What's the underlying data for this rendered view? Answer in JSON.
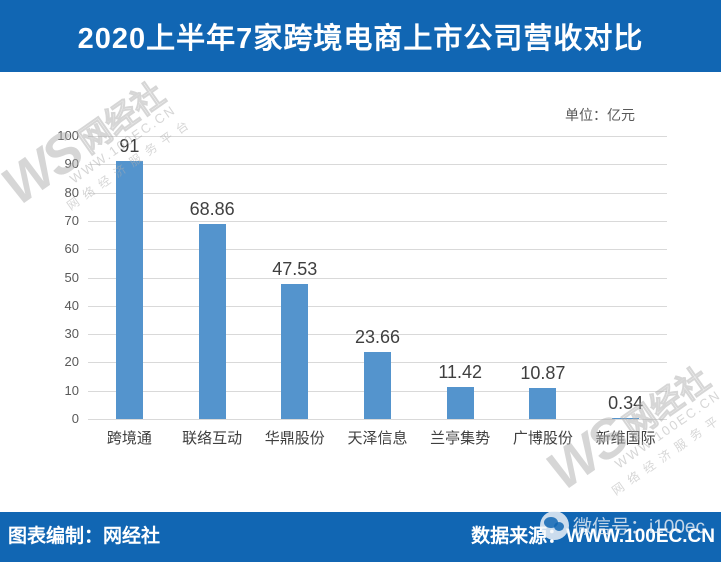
{
  "header": {
    "title": "2020上半年7家跨境电商上市公司营收对比"
  },
  "chart_data": {
    "type": "bar",
    "title": "2020上半年7家跨境电商上市公司营收对比",
    "unit_label": "单位：亿元",
    "categories": [
      "跨境通",
      "联络互动",
      "华鼎股份",
      "天泽信息",
      "兰亭集势",
      "广博股份",
      "新维国际"
    ],
    "values": [
      91,
      68.86,
      47.53,
      23.66,
      11.42,
      10.87,
      0.34
    ],
    "value_labels": [
      "91",
      "68.86",
      "47.53",
      "23.66",
      "11.42",
      "10.87",
      "0.34"
    ],
    "xlabel": "",
    "ylabel": "",
    "ylim": [
      0,
      100
    ],
    "ytick_step": 10,
    "grid": true,
    "legend": "none",
    "bar_color": "#5494CD"
  },
  "watermark": {
    "logo": "WS",
    "brand": "网经社",
    "site": "WWW.100EC.CN",
    "slogan": "网络经济服务平台"
  },
  "footer": {
    "left": "图表编制：网经社",
    "right": "数据来源：WWW.100EC.CN",
    "wechat": "微信号：i100ec"
  },
  "colors": {
    "banner": "#1166B3",
    "bar": "#5494CD",
    "grid": "#D9D9D9",
    "axis_text": "#595959",
    "label_text": "#3F3F3F"
  }
}
